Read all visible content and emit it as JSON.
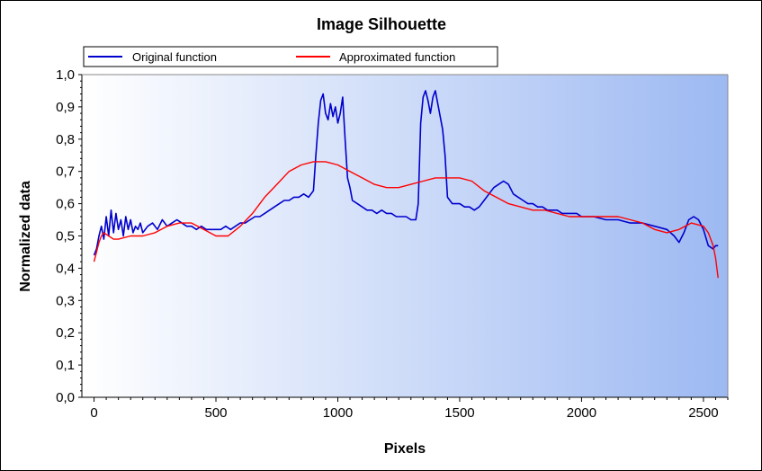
{
  "chart_data": {
    "type": "line",
    "title": "Image Silhouette",
    "xlabel": "Pixels",
    "ylabel": "Normalized data",
    "xlim": [
      -50,
      2600
    ],
    "ylim": [
      0,
      1.0
    ],
    "x_ticks": [
      0,
      500,
      1000,
      1500,
      2000,
      2500
    ],
    "y_ticks": [
      0.0,
      0.1,
      0.2,
      0.3,
      0.4,
      0.5,
      0.6,
      0.7,
      0.8,
      0.9,
      1.0
    ],
    "x_tick_labels": [
      "0",
      "500",
      "1000",
      "1500",
      "2000",
      "2500"
    ],
    "y_tick_labels": [
      "0,0",
      "0,1",
      "0,2",
      "0,3",
      "0,4",
      "0,5",
      "0,6",
      "0,7",
      "0,8",
      "0,9",
      "1,0"
    ],
    "grid": false,
    "legend_position": "top",
    "background": "gradient white to blue",
    "series": [
      {
        "name": "Original function",
        "color": "#0000cc",
        "x": [
          0,
          10,
          20,
          30,
          40,
          50,
          60,
          70,
          80,
          90,
          100,
          110,
          120,
          130,
          140,
          150,
          160,
          170,
          180,
          190,
          200,
          220,
          240,
          260,
          280,
          300,
          320,
          340,
          360,
          380,
          400,
          420,
          440,
          460,
          480,
          500,
          520,
          540,
          560,
          580,
          600,
          620,
          640,
          660,
          680,
          700,
          720,
          740,
          760,
          780,
          800,
          820,
          840,
          860,
          880,
          900,
          910,
          920,
          930,
          940,
          950,
          960,
          970,
          980,
          990,
          1000,
          1010,
          1020,
          1030,
          1040,
          1050,
          1060,
          1080,
          1100,
          1120,
          1140,
          1160,
          1180,
          1200,
          1220,
          1240,
          1260,
          1280,
          1300,
          1320,
          1330,
          1340,
          1350,
          1360,
          1370,
          1380,
          1390,
          1400,
          1410,
          1420,
          1430,
          1440,
          1450,
          1460,
          1470,
          1480,
          1500,
          1520,
          1540,
          1560,
          1580,
          1600,
          1620,
          1640,
          1660,
          1680,
          1700,
          1720,
          1740,
          1760,
          1780,
          1800,
          1820,
          1840,
          1860,
          1880,
          1900,
          1920,
          1940,
          1960,
          1980,
          2000,
          2050,
          2100,
          2150,
          2200,
          2250,
          2300,
          2350,
          2380,
          2400,
          2420,
          2440,
          2460,
          2480,
          2500,
          2520,
          2540,
          2550,
          2560
        ],
        "values": [
          0.44,
          0.46,
          0.5,
          0.53,
          0.49,
          0.56,
          0.5,
          0.58,
          0.51,
          0.57,
          0.52,
          0.55,
          0.5,
          0.56,
          0.52,
          0.55,
          0.51,
          0.53,
          0.52,
          0.54,
          0.51,
          0.53,
          0.54,
          0.52,
          0.55,
          0.53,
          0.54,
          0.55,
          0.54,
          0.53,
          0.53,
          0.52,
          0.53,
          0.52,
          0.52,
          0.52,
          0.52,
          0.53,
          0.52,
          0.53,
          0.54,
          0.54,
          0.55,
          0.56,
          0.56,
          0.57,
          0.58,
          0.59,
          0.6,
          0.61,
          0.61,
          0.62,
          0.62,
          0.63,
          0.62,
          0.64,
          0.75,
          0.85,
          0.92,
          0.94,
          0.88,
          0.86,
          0.91,
          0.87,
          0.9,
          0.85,
          0.88,
          0.93,
          0.8,
          0.68,
          0.65,
          0.61,
          0.6,
          0.59,
          0.58,
          0.58,
          0.57,
          0.58,
          0.57,
          0.57,
          0.56,
          0.56,
          0.56,
          0.55,
          0.55,
          0.6,
          0.85,
          0.93,
          0.95,
          0.92,
          0.88,
          0.93,
          0.95,
          0.91,
          0.87,
          0.83,
          0.75,
          0.62,
          0.61,
          0.6,
          0.6,
          0.6,
          0.59,
          0.59,
          0.58,
          0.59,
          0.61,
          0.63,
          0.65,
          0.66,
          0.67,
          0.66,
          0.63,
          0.62,
          0.61,
          0.6,
          0.6,
          0.59,
          0.59,
          0.58,
          0.58,
          0.58,
          0.57,
          0.57,
          0.57,
          0.57,
          0.56,
          0.56,
          0.55,
          0.55,
          0.54,
          0.54,
          0.53,
          0.52,
          0.5,
          0.48,
          0.51,
          0.55,
          0.56,
          0.55,
          0.52,
          0.47,
          0.46,
          0.47,
          0.47
        ]
      },
      {
        "name": "Approximated function",
        "color": "#ff0000",
        "x": [
          0,
          10,
          20,
          30,
          40,
          60,
          80,
          100,
          150,
          200,
          250,
          300,
          350,
          400,
          450,
          500,
          550,
          600,
          650,
          700,
          750,
          800,
          850,
          900,
          950,
          1000,
          1050,
          1100,
          1150,
          1200,
          1250,
          1300,
          1350,
          1400,
          1450,
          1500,
          1550,
          1600,
          1650,
          1700,
          1750,
          1800,
          1850,
          1900,
          1950,
          2000,
          2050,
          2100,
          2150,
          2200,
          2250,
          2300,
          2350,
          2400,
          2450,
          2500,
          2520,
          2540,
          2550,
          2560
        ],
        "values": [
          0.42,
          0.45,
          0.48,
          0.5,
          0.51,
          0.5,
          0.49,
          0.49,
          0.5,
          0.5,
          0.51,
          0.53,
          0.54,
          0.54,
          0.52,
          0.5,
          0.5,
          0.53,
          0.57,
          0.62,
          0.66,
          0.7,
          0.72,
          0.73,
          0.73,
          0.72,
          0.7,
          0.68,
          0.66,
          0.65,
          0.65,
          0.66,
          0.67,
          0.68,
          0.68,
          0.68,
          0.67,
          0.64,
          0.62,
          0.6,
          0.59,
          0.58,
          0.58,
          0.57,
          0.56,
          0.56,
          0.56,
          0.56,
          0.56,
          0.55,
          0.54,
          0.52,
          0.51,
          0.52,
          0.54,
          0.53,
          0.51,
          0.47,
          0.43,
          0.37
        ]
      }
    ]
  }
}
